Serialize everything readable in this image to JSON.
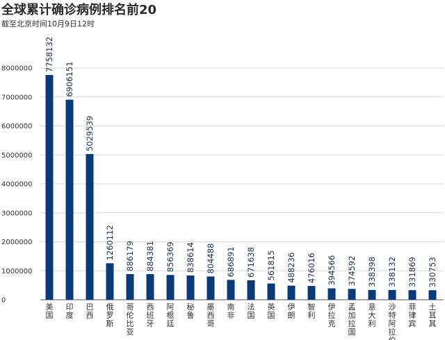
{
  "title": "全球累计确诊病例排名前20",
  "subtitle": "截至北京时间10月9日12时",
  "colors": {
    "bar": "#0b3a78",
    "grid": "#d9d9d9",
    "axis": "#555555"
  },
  "chart_data": {
    "type": "bar",
    "title": "全球累计确诊病例排名前20",
    "subtitle": "截至北京时间10月9日12时",
    "xlabel": "",
    "ylabel": "",
    "ylim": [
      0,
      8000000
    ],
    "yticks": [
      0,
      1000000,
      2000000,
      3000000,
      4000000,
      5000000,
      6000000,
      7000000,
      8000000
    ],
    "grid": true,
    "categories": [
      "美国",
      "印度",
      "巴西",
      "俄罗斯",
      "哥伦比亚",
      "西班牙",
      "阿根廷",
      "秘鲁",
      "墨西哥",
      "南非",
      "法国",
      "英国",
      "伊朗",
      "智利",
      "伊拉克",
      "孟加拉国",
      "意大利",
      "沙特阿拉伯",
      "菲律宾",
      "土耳其"
    ],
    "values": [
      7758132,
      6906151,
      5029539,
      1260112,
      886179,
      884381,
      856369,
      838614,
      804488,
      686891,
      671638,
      561815,
      488236,
      476016,
      394566,
      374592,
      338398,
      338132,
      331869,
      330753
    ]
  }
}
